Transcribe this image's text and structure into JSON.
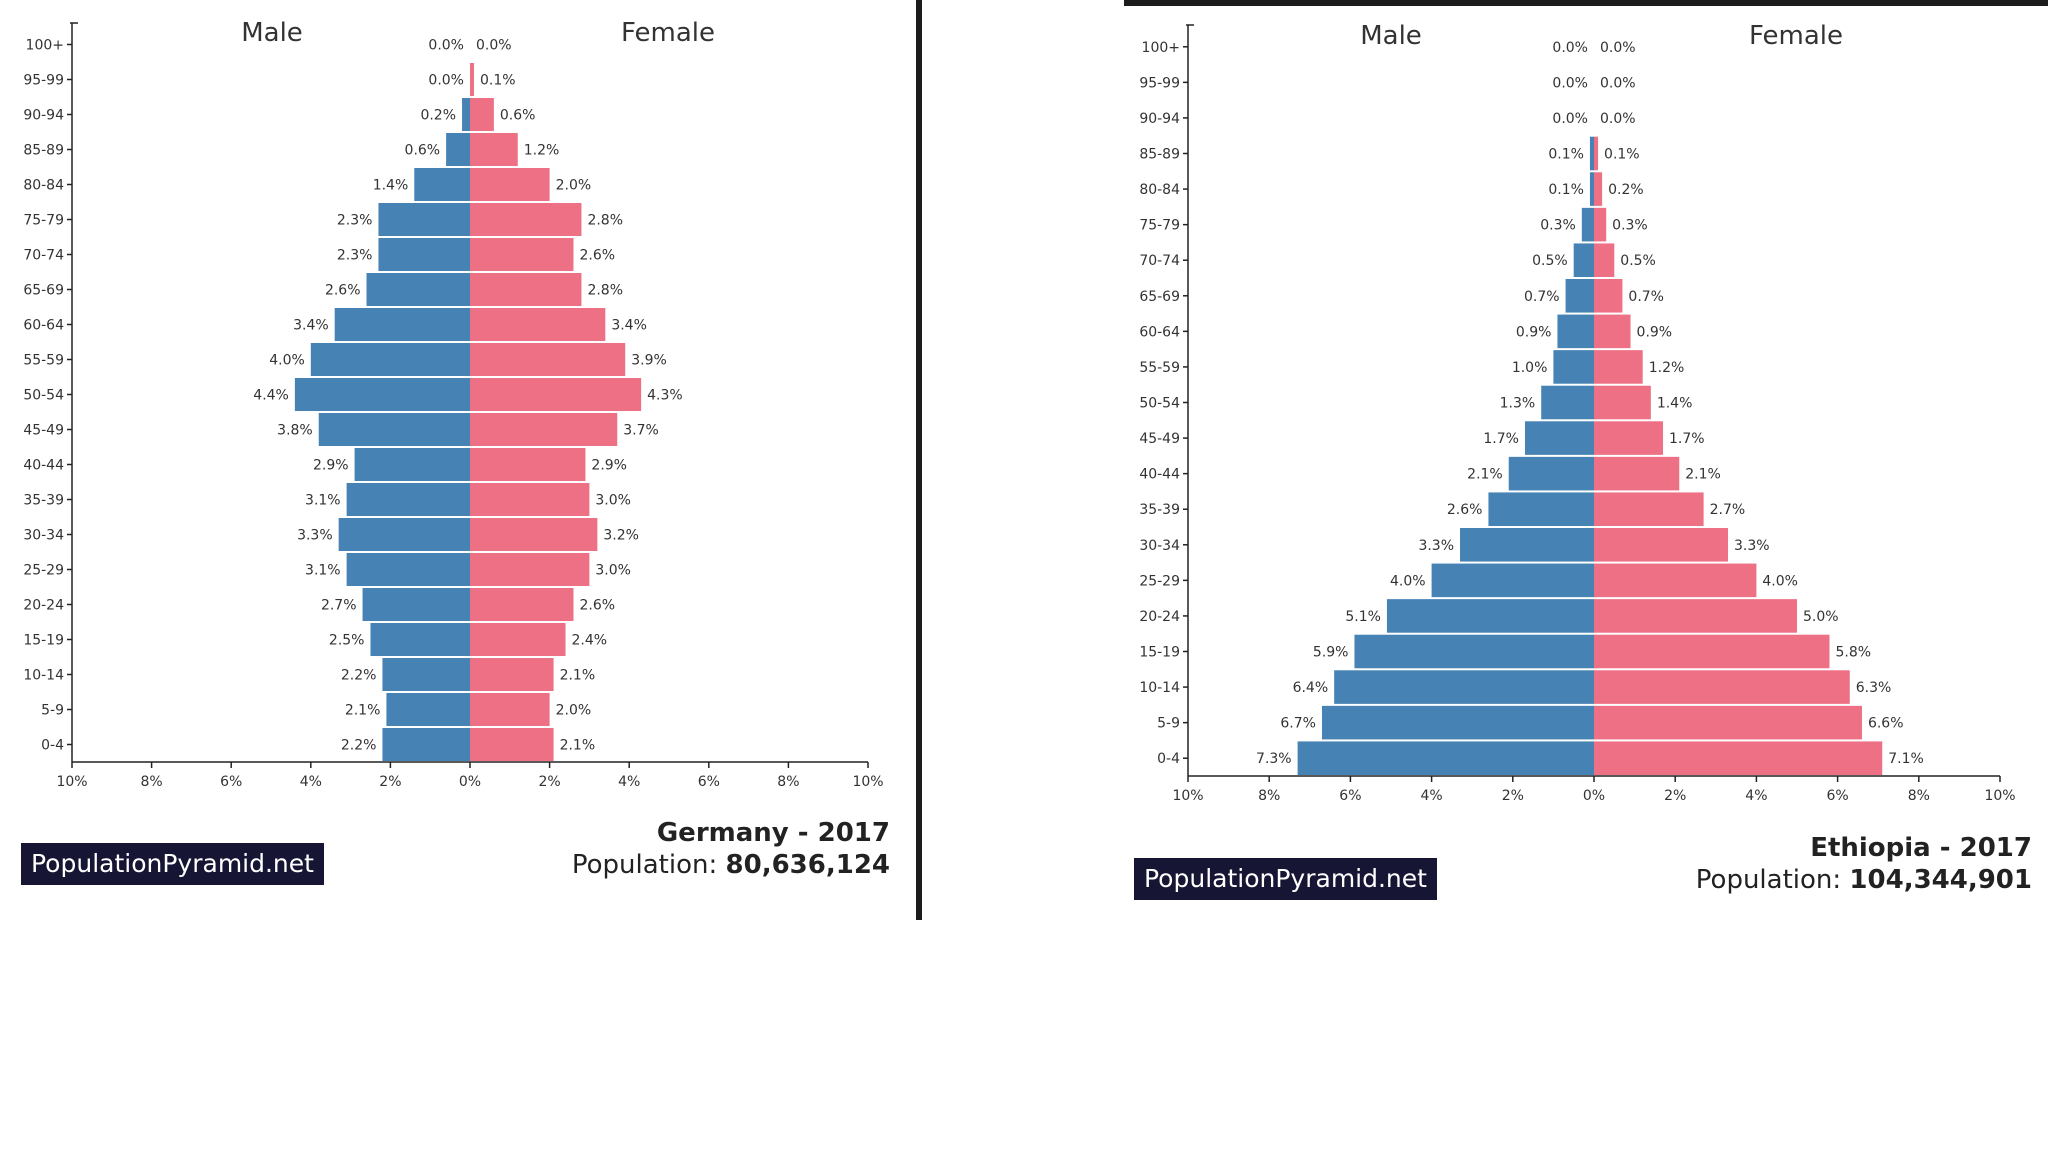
{
  "colors": {
    "male": "#4682b4",
    "female": "#ee7085",
    "brand_bg": "#161634"
  },
  "chart_data": [
    {
      "type": "bar",
      "orientation": "horizontal-diverging",
      "country": "Germany",
      "year": "2017",
      "title_text": "Germany - 2017",
      "population_label": "Population:",
      "population_value": "80,636,124",
      "brand": "PopulationPyramid.net",
      "male_label": "Male",
      "female_label": "Female",
      "xlim": [
        -10,
        10
      ],
      "x_ticks": [
        "10%",
        "8%",
        "6%",
        "4%",
        "2%",
        "0%",
        "2%",
        "4%",
        "6%",
        "8%",
        "10%"
      ],
      "categories": [
        "100+",
        "95-99",
        "90-94",
        "85-89",
        "80-84",
        "75-79",
        "70-74",
        "65-69",
        "60-64",
        "55-59",
        "50-54",
        "45-49",
        "40-44",
        "35-39",
        "30-34",
        "25-29",
        "20-24",
        "15-19",
        "10-14",
        "5-9",
        "0-4"
      ],
      "series": [
        {
          "name": "Male",
          "values": [
            0.0,
            0.0,
            0.2,
            0.6,
            1.4,
            2.3,
            2.3,
            2.6,
            3.4,
            4.0,
            4.4,
            3.8,
            2.9,
            3.1,
            3.3,
            3.1,
            2.7,
            2.5,
            2.2,
            2.1,
            2.2
          ],
          "labels": [
            "0.0%",
            "0.0%",
            "0.2%",
            "0.6%",
            "1.4%",
            "2.3%",
            "2.3%",
            "2.6%",
            "3.4%",
            "4.0%",
            "4.4%",
            "3.8%",
            "2.9%",
            "3.1%",
            "3.3%",
            "3.1%",
            "2.7%",
            "2.5%",
            "2.2%",
            "2.1%",
            "2.2%"
          ]
        },
        {
          "name": "Female",
          "values": [
            0.0,
            0.1,
            0.6,
            1.2,
            2.0,
            2.8,
            2.6,
            2.8,
            3.4,
            3.9,
            4.3,
            3.7,
            2.9,
            3.0,
            3.2,
            3.0,
            2.6,
            2.4,
            2.1,
            2.0,
            2.1
          ],
          "labels": [
            "0.0%",
            "0.1%",
            "0.6%",
            "1.2%",
            "2.0%",
            "2.8%",
            "2.6%",
            "2.8%",
            "3.4%",
            "3.9%",
            "4.3%",
            "3.7%",
            "2.9%",
            "3.0%",
            "3.2%",
            "3.0%",
            "2.6%",
            "2.4%",
            "2.1%",
            "2.0%",
            "2.1%"
          ]
        }
      ]
    },
    {
      "type": "bar",
      "orientation": "horizontal-diverging",
      "country": "Ethiopia",
      "year": "2017",
      "title_text": "Ethiopia - 2017",
      "population_label": "Population:",
      "population_value": "104,344,901",
      "brand": "PopulationPyramid.net",
      "male_label": "Male",
      "female_label": "Female",
      "xlim": [
        -10,
        10
      ],
      "x_ticks": [
        "10%",
        "8%",
        "6%",
        "4%",
        "2%",
        "0%",
        "2%",
        "4%",
        "6%",
        "8%",
        "10%"
      ],
      "categories": [
        "100+",
        "95-99",
        "90-94",
        "85-89",
        "80-84",
        "75-79",
        "70-74",
        "65-69",
        "60-64",
        "55-59",
        "50-54",
        "45-49",
        "40-44",
        "35-39",
        "30-34",
        "25-29",
        "20-24",
        "15-19",
        "10-14",
        "5-9",
        "0-4"
      ],
      "series": [
        {
          "name": "Male",
          "values": [
            0.0,
            0.0,
            0.0,
            0.1,
            0.1,
            0.3,
            0.5,
            0.7,
            0.9,
            1.0,
            1.3,
            1.7,
            2.1,
            2.6,
            3.3,
            4.0,
            5.1,
            5.9,
            6.4,
            6.7,
            7.3
          ],
          "labels": [
            "0.0%",
            "0.0%",
            "0.0%",
            "0.1%",
            "0.1%",
            "0.3%",
            "0.5%",
            "0.7%",
            "0.9%",
            "1.0%",
            "1.3%",
            "1.7%",
            "2.1%",
            "2.6%",
            "3.3%",
            "4.0%",
            "5.1%",
            "5.9%",
            "6.4%",
            "6.7%",
            "7.3%"
          ]
        },
        {
          "name": "Female",
          "values": [
            0.0,
            0.0,
            0.0,
            0.1,
            0.2,
            0.3,
            0.5,
            0.7,
            0.9,
            1.2,
            1.4,
            1.7,
            2.1,
            2.7,
            3.3,
            4.0,
            5.0,
            5.8,
            6.3,
            6.6,
            7.1
          ],
          "labels": [
            "0.0%",
            "0.0%",
            "0.0%",
            "0.1%",
            "0.2%",
            "0.3%",
            "0.5%",
            "0.7%",
            "0.9%",
            "1.2%",
            "1.4%",
            "1.7%",
            "2.1%",
            "2.7%",
            "3.3%",
            "4.0%",
            "5.0%",
            "5.8%",
            "6.3%",
            "6.6%",
            "7.1%"
          ]
        }
      ]
    }
  ]
}
